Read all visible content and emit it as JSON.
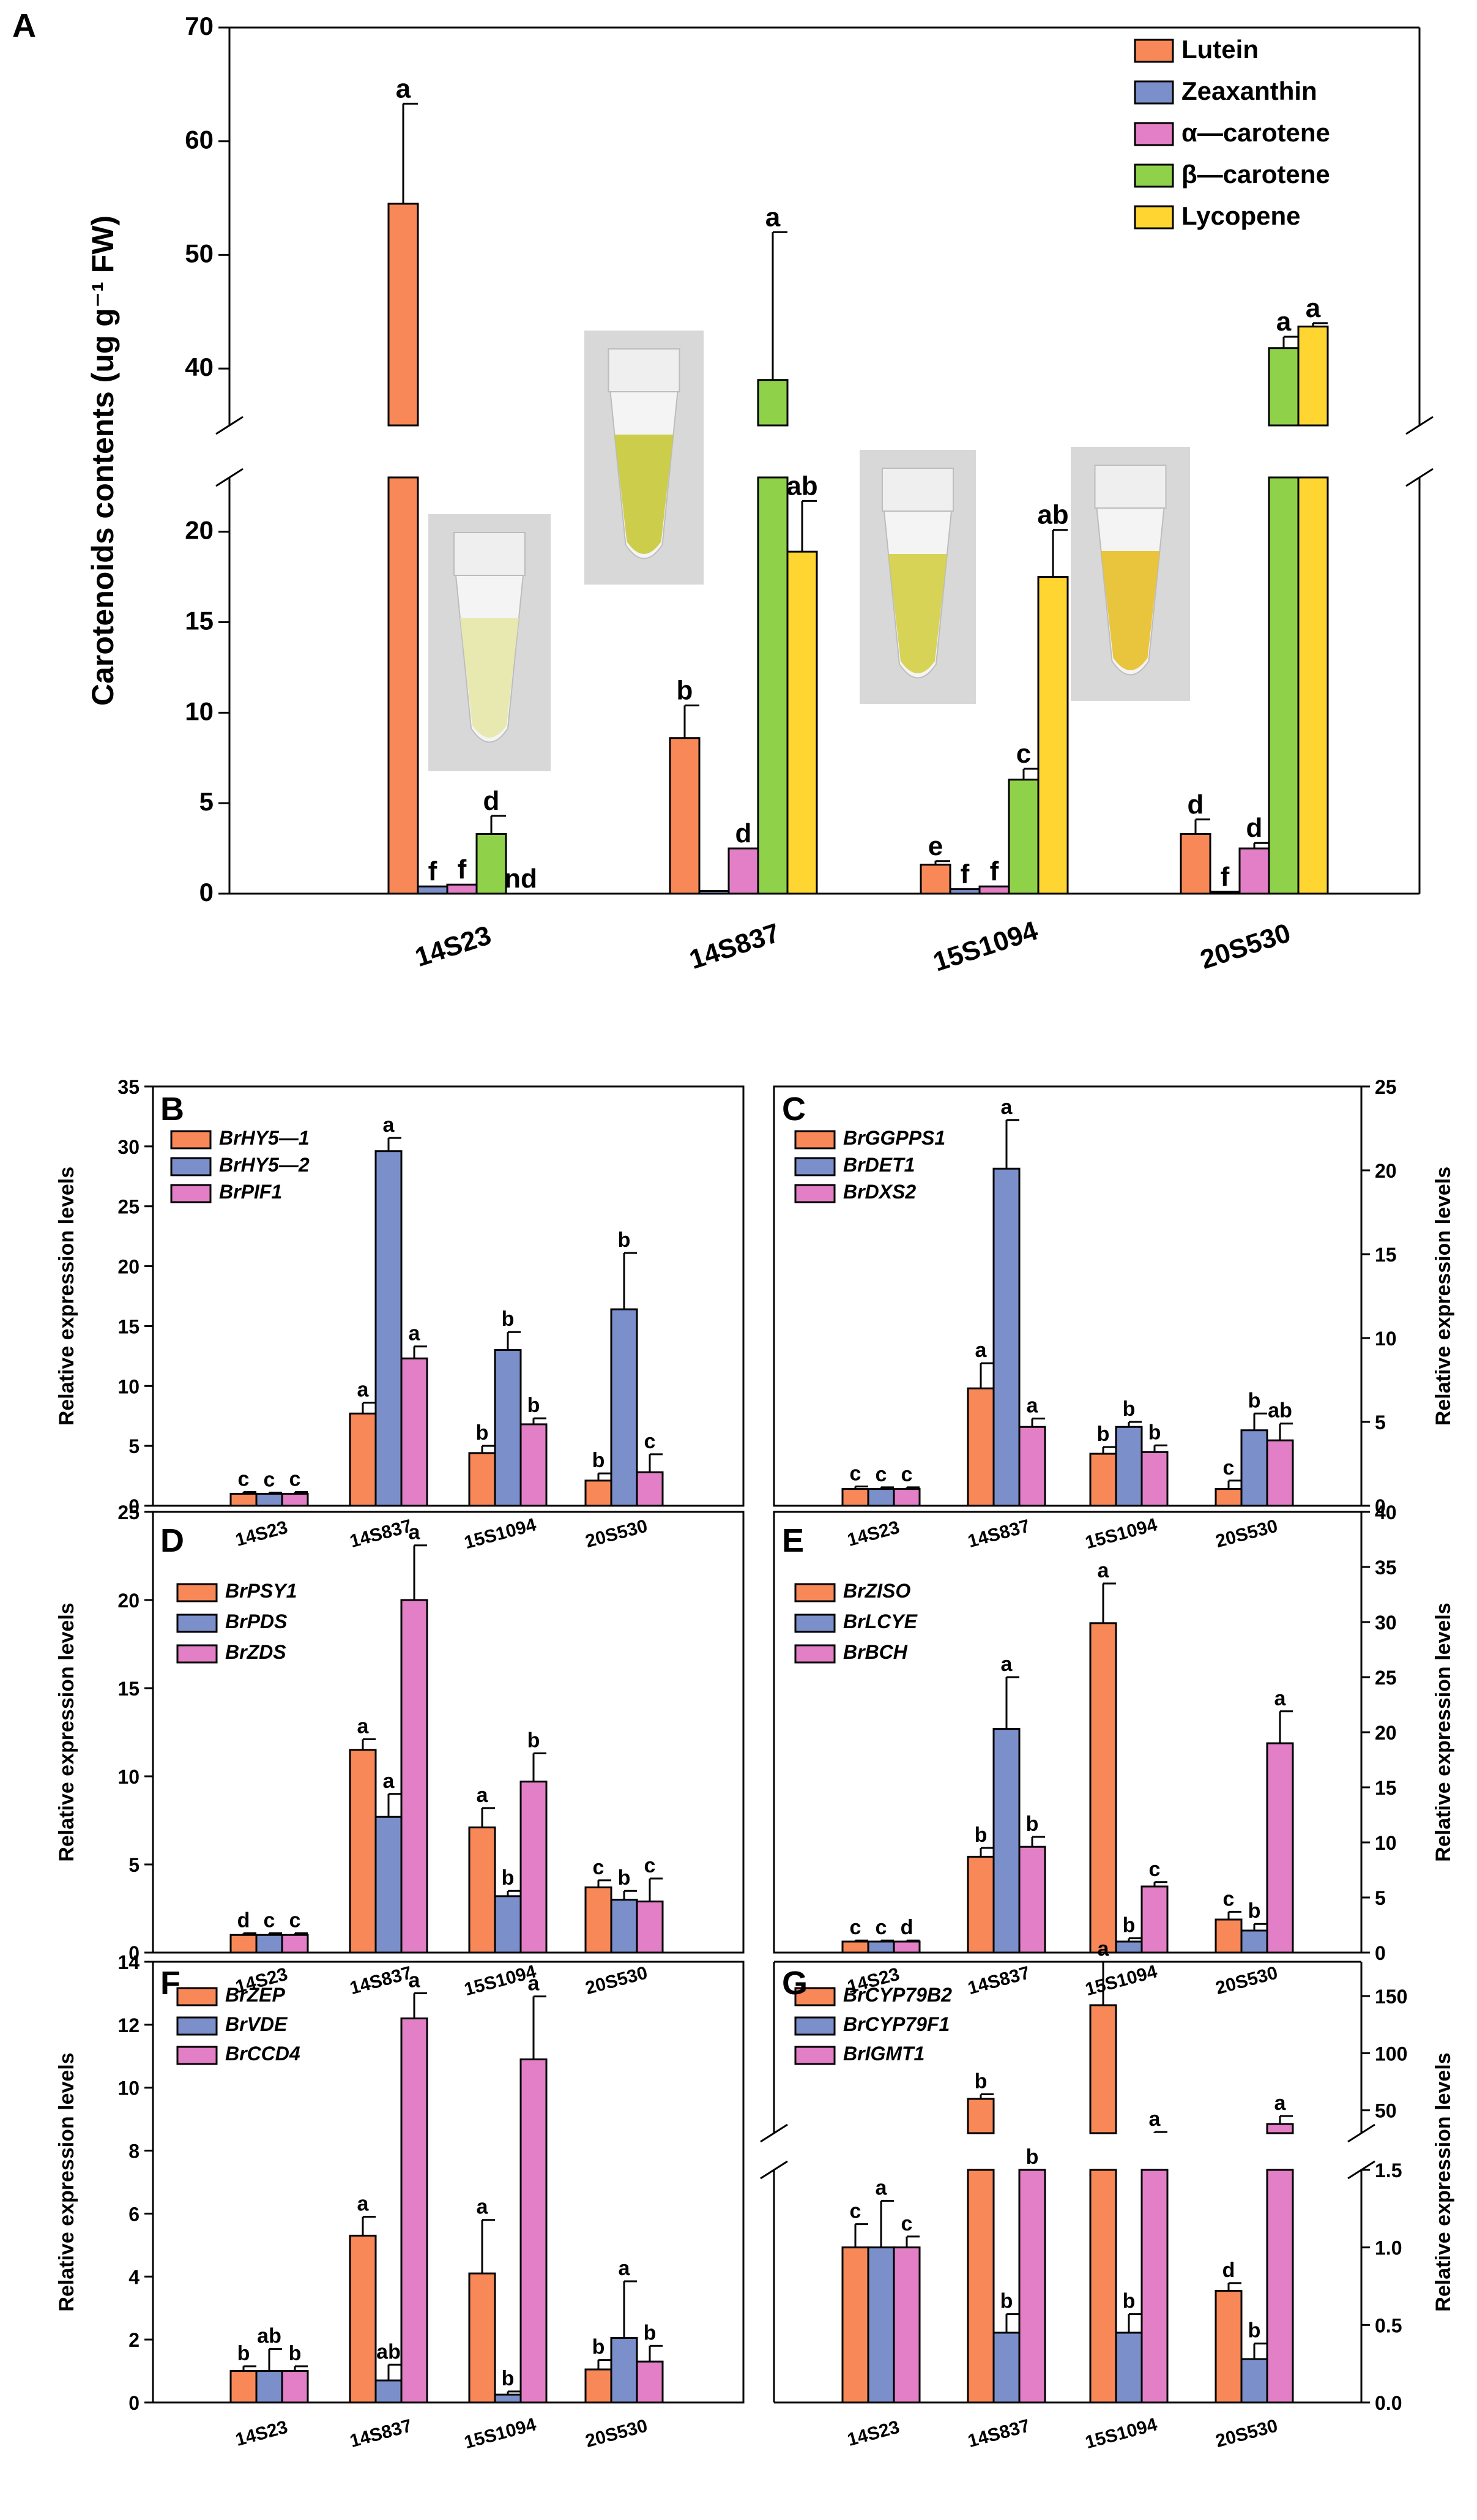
{
  "figure": {
    "colors": {
      "orange": "#F88858",
      "blue": "#7B8FCB",
      "pink": "#E27FC6",
      "green": "#8FD24A",
      "yellow": "#FFD631"
    }
  },
  "chart_data": [
    {
      "panel": "A",
      "type": "bar",
      "ylabel": "Carotenoids contents (ug g⁻¹ FW)",
      "categories": [
        "14S23",
        "14S837",
        "15S1094",
        "20S530"
      ],
      "ylim_lower": [
        0,
        23
      ],
      "ylim_upper": [
        35,
        70
      ],
      "lower_ticks": [
        0,
        5,
        10,
        15,
        20
      ],
      "upper_ticks": [
        40,
        50,
        60,
        70
      ],
      "legend_position": "top-right",
      "series": [
        {
          "name": "Lutein",
          "color": "orange",
          "values": [
            54.5,
            8.6,
            1.6,
            3.3
          ],
          "errors": [
            8.8,
            1.8,
            0.2,
            0.8
          ],
          "labels": [
            "a",
            "b",
            "e",
            "d"
          ]
        },
        {
          "name": "Zeaxanthin",
          "color": "blue",
          "values": [
            0.4,
            0.15,
            0.25,
            0.1
          ],
          "errors": [
            0,
            0,
            0,
            0
          ],
          "labels": [
            "f",
            "",
            "f",
            "f"
          ]
        },
        {
          "name": "α—carotene",
          "color": "pink",
          "values": [
            0.5,
            2.5,
            0.4,
            2.5
          ],
          "errors": [
            0,
            0,
            0,
            0.3
          ],
          "labels": [
            "f",
            "d",
            "f",
            "d"
          ]
        },
        {
          "name": "β—carotene",
          "color": "green",
          "values": [
            3.3,
            39,
            6.3,
            41.8
          ],
          "errors": [
            1.0,
            13,
            0.6,
            1.0
          ],
          "labels": [
            "d",
            "a",
            "c",
            "a"
          ]
        },
        {
          "name": "Lycopene",
          "color": "yellow",
          "values": [
            0,
            18.9,
            17.5,
            43.7
          ],
          "errors": [
            0,
            2.8,
            2.6,
            0.3
          ],
          "labels": [
            "nd",
            "ab",
            "ab",
            "a"
          ]
        }
      ]
    },
    {
      "panel": "B",
      "type": "bar",
      "ylabel": "Relative expression levels",
      "axis_side": "left",
      "categories": [
        "14S23",
        "14S837",
        "15S1094",
        "20S530"
      ],
      "ylim": [
        0,
        35
      ],
      "ticks": [
        0,
        5,
        10,
        15,
        20,
        25,
        30,
        35
      ],
      "series": [
        {
          "name": "BrHY5—1",
          "color": "orange",
          "values": [
            1.0,
            7.7,
            4.4,
            2.1
          ],
          "errors": [
            0.15,
            0.9,
            0.6,
            0.6
          ],
          "labels": [
            "c",
            "a",
            "b",
            "b"
          ]
        },
        {
          "name": "BrHY5—2",
          "color": "blue",
          "values": [
            1.0,
            29.6,
            13.0,
            16.4
          ],
          "errors": [
            0.1,
            1.1,
            1.5,
            4.7
          ],
          "labels": [
            "c",
            "a",
            "b",
            "b"
          ]
        },
        {
          "name": "BrPIF1",
          "color": "pink",
          "values": [
            1.0,
            12.3,
            6.8,
            2.8
          ],
          "errors": [
            0.15,
            1.0,
            0.5,
            1.5
          ],
          "labels": [
            "c",
            "a",
            "b",
            "c"
          ]
        }
      ]
    },
    {
      "panel": "C",
      "type": "bar",
      "ylabel": "Relative expression levels",
      "axis_side": "right",
      "categories": [
        "14S23",
        "14S837",
        "15S1094",
        "20S530"
      ],
      "ylim": [
        0,
        25
      ],
      "ticks": [
        0,
        5,
        10,
        15,
        20,
        25
      ],
      "series": [
        {
          "name": "BrGGPPS1",
          "color": "orange",
          "values": [
            1.0,
            7.0,
            3.1,
            1.0
          ],
          "errors": [
            0.15,
            1.5,
            0.4,
            0.5
          ],
          "labels": [
            "c",
            "a",
            "b",
            "c"
          ]
        },
        {
          "name": "BrDET1",
          "color": "blue",
          "values": [
            1.0,
            20.1,
            4.7,
            4.5
          ],
          "errors": [
            0.1,
            2.9,
            0.3,
            1.0
          ],
          "labels": [
            "c",
            "a",
            "b",
            "b"
          ]
        },
        {
          "name": "BrDXS2",
          "color": "pink",
          "values": [
            1.0,
            4.7,
            3.2,
            3.9
          ],
          "errors": [
            0.1,
            0.5,
            0.4,
            1.0
          ],
          "labels": [
            "c",
            "a",
            "b",
            "ab"
          ]
        }
      ]
    },
    {
      "panel": "D",
      "type": "bar",
      "ylabel": "Relative expression levels",
      "axis_side": "left",
      "categories": [
        "14S23",
        "14S837",
        "15S1094",
        "20S530"
      ],
      "ylim": [
        0,
        25
      ],
      "ticks": [
        0,
        5,
        10,
        15,
        20,
        25
      ],
      "series": [
        {
          "name": "BrPSY1",
          "color": "orange",
          "values": [
            1.0,
            11.5,
            7.1,
            3.7
          ],
          "errors": [
            0.1,
            0.6,
            1.1,
            0.4
          ],
          "labels": [
            "d",
            "a",
            "a",
            "c"
          ]
        },
        {
          "name": "BrPDS",
          "color": "blue",
          "values": [
            1.0,
            7.7,
            3.2,
            3.0
          ],
          "errors": [
            0.1,
            1.3,
            0.3,
            0.5
          ],
          "labels": [
            "c",
            "a",
            "b",
            "b"
          ]
        },
        {
          "name": "BrZDS",
          "color": "pink",
          "values": [
            1.0,
            20.0,
            9.7,
            2.9
          ],
          "errors": [
            0.1,
            3.1,
            1.6,
            1.3
          ],
          "labels": [
            "c",
            "a",
            "b",
            "c"
          ]
        }
      ]
    },
    {
      "panel": "E",
      "type": "bar",
      "ylabel": "Relative expression levels",
      "axis_side": "right",
      "categories": [
        "14S23",
        "14S837",
        "15S1094",
        "20S530"
      ],
      "ylim": [
        0,
        40
      ],
      "ticks": [
        0,
        5,
        10,
        15,
        20,
        25,
        30,
        35,
        40
      ],
      "series": [
        {
          "name": "BrZISO",
          "color": "orange",
          "values": [
            1.0,
            8.7,
            29.9,
            3.0
          ],
          "errors": [
            0.1,
            0.8,
            3.6,
            0.7
          ],
          "labels": [
            "c",
            "b",
            "a",
            "c"
          ]
        },
        {
          "name": "BrLCYE",
          "color": "blue",
          "values": [
            1.0,
            20.3,
            1.0,
            2.0
          ],
          "errors": [
            0.1,
            4.7,
            0.3,
            0.6
          ],
          "labels": [
            "c",
            "a",
            "b",
            "b"
          ]
        },
        {
          "name": "BrBCH",
          "color": "pink",
          "values": [
            1.0,
            9.6,
            6.0,
            19.0
          ],
          "errors": [
            0.1,
            0.9,
            0.4,
            2.9
          ],
          "labels": [
            "d",
            "b",
            "c",
            "a"
          ]
        }
      ]
    },
    {
      "panel": "F",
      "type": "bar",
      "ylabel": "Relative expression levels",
      "axis_side": "left",
      "categories": [
        "14S23",
        "14S837",
        "15S1094",
        "20S530"
      ],
      "ylim": [
        0,
        14
      ],
      "ticks": [
        0,
        2,
        4,
        6,
        8,
        10,
        12,
        14
      ],
      "series": [
        {
          "name": "BrZEP",
          "color": "orange",
          "values": [
            1.0,
            5.3,
            4.1,
            1.05
          ],
          "errors": [
            0.15,
            0.6,
            1.7,
            0.3
          ],
          "labels": [
            "b",
            "a",
            "a",
            "b"
          ]
        },
        {
          "name": "BrVDE",
          "color": "blue",
          "values": [
            1.0,
            0.7,
            0.25,
            2.05
          ],
          "errors": [
            0.7,
            0.5,
            0.1,
            1.8
          ],
          "labels": [
            "ab",
            "ab",
            "b",
            "a"
          ]
        },
        {
          "name": "BrCCD4",
          "color": "pink",
          "values": [
            1.0,
            12.2,
            10.9,
            1.3
          ],
          "errors": [
            0.15,
            0.8,
            2.0,
            0.5
          ],
          "labels": [
            "b",
            "a",
            "a",
            "b"
          ]
        }
      ]
    },
    {
      "panel": "G",
      "type": "bar",
      "ylabel": "Relative expression levels",
      "axis_side": "right",
      "categories": [
        "14S23",
        "14S837",
        "15S1094",
        "20S530"
      ],
      "ylim_lower": [
        0,
        1.5
      ],
      "ylim_upper": [
        30,
        180
      ],
      "lower_ticks": [
        0.0,
        0.5,
        1.0,
        1.5
      ],
      "upper_ticks": [
        50,
        100,
        150
      ],
      "series": [
        {
          "name": "BrCYP79B2",
          "color": "orange",
          "values": [
            1.0,
            60,
            142,
            0.72
          ],
          "errors": [
            0.15,
            4,
            38,
            0.05
          ],
          "labels": [
            "c",
            "b",
            "a",
            "d"
          ]
        },
        {
          "name": "BrCYP79F1",
          "color": "blue",
          "values": [
            1.0,
            0.45,
            0.45,
            0.28
          ],
          "errors": [
            0.3,
            0.12,
            0.12,
            0.1
          ],
          "labels": [
            "a",
            "b",
            "b",
            "b"
          ]
        },
        {
          "name": "BrIGMT1",
          "color": "pink",
          "values": [
            1.0,
            1.5,
            29,
            38
          ],
          "errors": [
            0.07,
            0,
            2,
            7
          ],
          "labels": [
            "c",
            "b",
            "a",
            "a"
          ]
        }
      ]
    }
  ]
}
